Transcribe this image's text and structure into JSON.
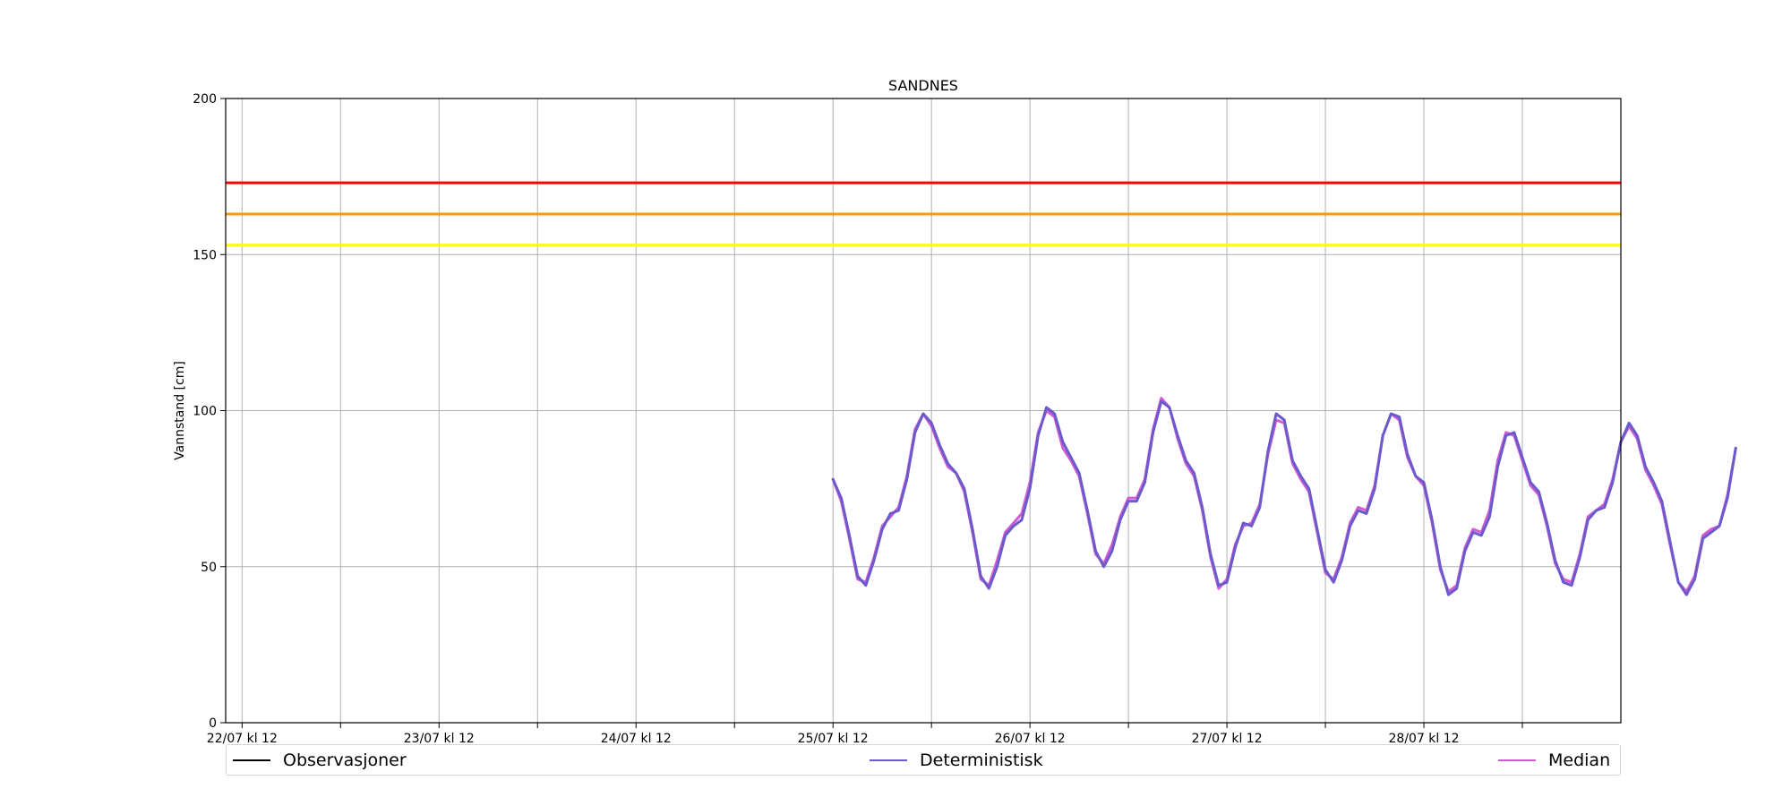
{
  "chart_data": {
    "type": "line",
    "title": "SANDNES",
    "ylabel": "Vannstand [cm]",
    "xlabel": "",
    "ylim": [
      0,
      200
    ],
    "yticks": [
      0,
      50,
      100,
      150,
      200
    ],
    "xlim_hours": [
      -2,
      168
    ],
    "xticks": [
      {
        "hour": 0,
        "label": "22/07 kl 12"
      },
      {
        "hour": 12,
        "label": ""
      },
      {
        "hour": 24,
        "label": "23/07 kl 12"
      },
      {
        "hour": 36,
        "label": ""
      },
      {
        "hour": 48,
        "label": "24/07 kl 12"
      },
      {
        "hour": 60,
        "label": ""
      },
      {
        "hour": 72,
        "label": "25/07 kl 12"
      },
      {
        "hour": 84,
        "label": ""
      },
      {
        "hour": 96,
        "label": "26/07 kl 12"
      },
      {
        "hour": 108,
        "label": ""
      },
      {
        "hour": 120,
        "label": "27/07 kl 12"
      },
      {
        "hour": 132,
        "label": ""
      },
      {
        "hour": 144,
        "label": "28/07 kl 12"
      },
      {
        "hour": 156,
        "label": ""
      }
    ],
    "grid": true,
    "thresholds": [
      {
        "value": 173,
        "color": "#ff0000"
      },
      {
        "value": 163,
        "color": "#ff9900"
      },
      {
        "value": 153,
        "color": "#ffff00"
      }
    ],
    "series": [
      {
        "name": "Observasjoner",
        "color": "#000000",
        "points": []
      },
      {
        "name": "Deterministisk",
        "color": "#6a5acd",
        "points": [
          [
            72,
            78
          ],
          [
            73,
            72
          ],
          [
            74,
            60
          ],
          [
            75,
            47
          ],
          [
            76,
            44
          ],
          [
            77,
            52
          ],
          [
            78,
            62
          ],
          [
            79,
            67
          ],
          [
            80,
            68
          ],
          [
            81,
            78
          ],
          [
            82,
            93
          ],
          [
            83,
            99
          ],
          [
            84,
            96
          ],
          [
            85,
            89
          ],
          [
            86,
            83
          ],
          [
            87,
            80
          ],
          [
            88,
            75
          ],
          [
            89,
            62
          ],
          [
            90,
            47
          ],
          [
            91,
            43
          ],
          [
            92,
            50
          ],
          [
            93,
            60
          ],
          [
            94,
            63
          ],
          [
            95,
            65
          ],
          [
            96,
            75
          ],
          [
            97,
            92
          ],
          [
            98,
            101
          ],
          [
            99,
            99
          ],
          [
            100,
            90
          ],
          [
            101,
            85
          ],
          [
            102,
            80
          ],
          [
            103,
            68
          ],
          [
            104,
            55
          ],
          [
            105,
            50
          ],
          [
            106,
            55
          ],
          [
            107,
            65
          ],
          [
            108,
            71
          ],
          [
            109,
            71
          ],
          [
            110,
            77
          ],
          [
            111,
            93
          ],
          [
            112,
            103
          ],
          [
            113,
            101
          ],
          [
            114,
            92
          ],
          [
            115,
            84
          ],
          [
            116,
            80
          ],
          [
            117,
            69
          ],
          [
            118,
            54
          ],
          [
            119,
            44
          ],
          [
            120,
            45
          ],
          [
            121,
            56
          ],
          [
            122,
            64
          ],
          [
            123,
            63
          ],
          [
            124,
            69
          ],
          [
            125,
            87
          ],
          [
            126,
            99
          ],
          [
            127,
            97
          ],
          [
            128,
            84
          ],
          [
            129,
            79
          ],
          [
            130,
            75
          ],
          [
            131,
            62
          ],
          [
            132,
            49
          ],
          [
            133,
            45
          ],
          [
            134,
            52
          ],
          [
            135,
            63
          ],
          [
            136,
            68
          ],
          [
            137,
            67
          ],
          [
            138,
            75
          ],
          [
            139,
            92
          ],
          [
            140,
            99
          ],
          [
            141,
            98
          ],
          [
            142,
            86
          ],
          [
            143,
            79
          ],
          [
            144,
            77
          ],
          [
            145,
            65
          ],
          [
            146,
            50
          ],
          [
            147,
            41
          ],
          [
            148,
            43
          ],
          [
            149,
            55
          ],
          [
            150,
            61
          ],
          [
            151,
            60
          ],
          [
            152,
            66
          ],
          [
            153,
            82
          ],
          [
            154,
            92
          ],
          [
            155,
            93
          ],
          [
            156,
            85
          ],
          [
            157,
            77
          ],
          [
            158,
            74
          ],
          [
            159,
            64
          ],
          [
            160,
            52
          ],
          [
            161,
            45
          ],
          [
            162,
            44
          ],
          [
            163,
            53
          ],
          [
            164,
            65
          ],
          [
            165,
            68
          ],
          [
            166,
            69
          ],
          [
            167,
            77
          ],
          [
            168,
            90
          ],
          [
            169,
            96
          ],
          [
            170,
            92
          ],
          [
            171,
            82
          ],
          [
            172,
            77
          ],
          [
            173,
            71
          ],
          [
            174,
            58
          ],
          [
            175,
            45
          ],
          [
            176,
            41
          ],
          [
            177,
            46
          ],
          [
            178,
            59
          ],
          [
            179,
            61
          ],
          [
            180,
            63
          ],
          [
            181,
            72
          ],
          [
            182,
            88
          ]
        ]
      },
      {
        "name": "Median",
        "color": "#d15cd1",
        "points": [
          [
            72,
            78
          ],
          [
            73,
            71
          ],
          [
            74,
            59
          ],
          [
            75,
            46
          ],
          [
            76,
            45
          ],
          [
            77,
            53
          ],
          [
            78,
            63
          ],
          [
            79,
            66
          ],
          [
            80,
            69
          ],
          [
            81,
            79
          ],
          [
            82,
            94
          ],
          [
            83,
            99
          ],
          [
            84,
            95
          ],
          [
            85,
            88
          ],
          [
            86,
            82
          ],
          [
            87,
            80
          ],
          [
            88,
            74
          ],
          [
            89,
            61
          ],
          [
            90,
            46
          ],
          [
            91,
            44
          ],
          [
            92,
            52
          ],
          [
            93,
            61
          ],
          [
            94,
            64
          ],
          [
            95,
            67
          ],
          [
            96,
            77
          ],
          [
            97,
            93
          ],
          [
            98,
            100
          ],
          [
            99,
            98
          ],
          [
            100,
            88
          ],
          [
            101,
            84
          ],
          [
            102,
            79
          ],
          [
            103,
            67
          ],
          [
            104,
            54
          ],
          [
            105,
            51
          ],
          [
            106,
            57
          ],
          [
            107,
            66
          ],
          [
            108,
            72
          ],
          [
            109,
            72
          ],
          [
            110,
            78
          ],
          [
            111,
            94
          ],
          [
            112,
            104
          ],
          [
            113,
            101
          ],
          [
            114,
            91
          ],
          [
            115,
            83
          ],
          [
            116,
            79
          ],
          [
            117,
            68
          ],
          [
            118,
            53
          ],
          [
            119,
            43
          ],
          [
            120,
            46
          ],
          [
            121,
            57
          ],
          [
            122,
            63
          ],
          [
            123,
            64
          ],
          [
            124,
            70
          ],
          [
            125,
            86
          ],
          [
            126,
            97
          ],
          [
            127,
            96
          ],
          [
            128,
            83
          ],
          [
            129,
            78
          ],
          [
            130,
            74
          ],
          [
            131,
            61
          ],
          [
            132,
            48
          ],
          [
            133,
            46
          ],
          [
            134,
            53
          ],
          [
            135,
            64
          ],
          [
            136,
            69
          ],
          [
            137,
            68
          ],
          [
            138,
            76
          ],
          [
            139,
            92
          ],
          [
            140,
            99
          ],
          [
            141,
            97
          ],
          [
            142,
            85
          ],
          [
            143,
            79
          ],
          [
            144,
            76
          ],
          [
            145,
            64
          ],
          [
            146,
            49
          ],
          [
            147,
            42
          ],
          [
            148,
            44
          ],
          [
            149,
            56
          ],
          [
            150,
            62
          ],
          [
            151,
            61
          ],
          [
            152,
            68
          ],
          [
            153,
            84
          ],
          [
            154,
            93
          ],
          [
            155,
            92
          ],
          [
            156,
            84
          ],
          [
            157,
            76
          ],
          [
            158,
            73
          ],
          [
            159,
            63
          ],
          [
            160,
            51
          ],
          [
            161,
            46
          ],
          [
            162,
            45
          ],
          [
            163,
            54
          ],
          [
            164,
            66
          ],
          [
            165,
            68
          ],
          [
            166,
            70
          ],
          [
            167,
            78
          ],
          [
            168,
            90
          ],
          [
            169,
            95
          ],
          [
            170,
            91
          ],
          [
            171,
            81
          ],
          [
            172,
            76
          ],
          [
            173,
            70
          ],
          [
            174,
            57
          ],
          [
            175,
            45
          ],
          [
            176,
            42
          ],
          [
            177,
            47
          ],
          [
            178,
            60
          ],
          [
            179,
            62
          ],
          [
            180,
            63
          ],
          [
            181,
            73
          ],
          [
            182,
            88
          ]
        ]
      }
    ],
    "legend": {
      "position": "bottom"
    }
  }
}
